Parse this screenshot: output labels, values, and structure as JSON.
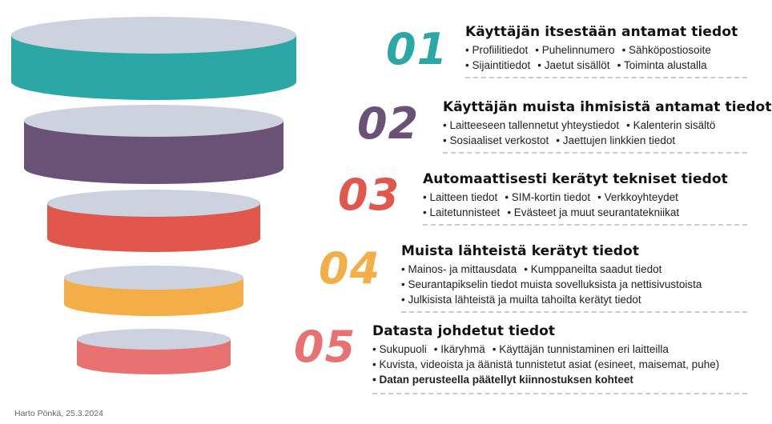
{
  "levels": [
    {
      "number": "01",
      "color": "#2ba8a5",
      "title": "Käyttäjän itsestään antamat tiedot",
      "lines": [
        [
          "Profiilitiedot",
          "Puhelinnumero",
          "Sähköpostiosoite"
        ],
        [
          "Sijaintitiedot",
          "Jaetut sisällöt",
          "Toiminta alustalla"
        ]
      ]
    },
    {
      "number": "02",
      "color": "#6a5276",
      "title": "Käyttäjän muista ihmisistä antamat tiedot",
      "lines": [
        [
          "Laitteeseen tallennetut yhteystiedot",
          "Kalenterin sisältö"
        ],
        [
          "Sosiaaliset verkostot",
          "Jaettujen linkkien tiedot"
        ]
      ]
    },
    {
      "number": "03",
      "color": "#e2574b",
      "title": "Automaattisesti kerätyt tekniset tiedot",
      "lines": [
        [
          "Laitteen tiedot",
          "SIM-kortin tiedot",
          "Verkkoyhteydet"
        ],
        [
          "Laitetunnisteet",
          "Evästeet ja muut seurantatekniikat"
        ]
      ]
    },
    {
      "number": "04",
      "color": "#f4ae47",
      "title": "Muista lähteistä kerätyt tiedot",
      "lines": [
        [
          "Mainos- ja mittausdata",
          "Kumppaneilta saadut tiedot"
        ],
        [
          "Seurantapikselin tiedot muista sovelluksista ja nettisivustoista"
        ],
        [
          "Julkisista lähteistä ja muilta tahoilta kerätyt tiedot"
        ]
      ]
    },
    {
      "number": "05",
      "color": "#e87171",
      "title": "Datasta johdetut tiedot",
      "lines": [
        [
          "Sukupuoli",
          "Ikäryhmä",
          "Käyttäjän tunnistaminen eri laitteilla"
        ],
        [
          "Kuvista, videoista ja äänistä tunnistetut asiat (esineet, maisemat, puhe)"
        ],
        [
          "Datan perusteella päätellyt kiinnostuksen kohteet"
        ]
      ],
      "bold_last_line": true
    }
  ],
  "credit": "Harto Pönkä, 25.3.2024",
  "top_color": "#cdd3de"
}
